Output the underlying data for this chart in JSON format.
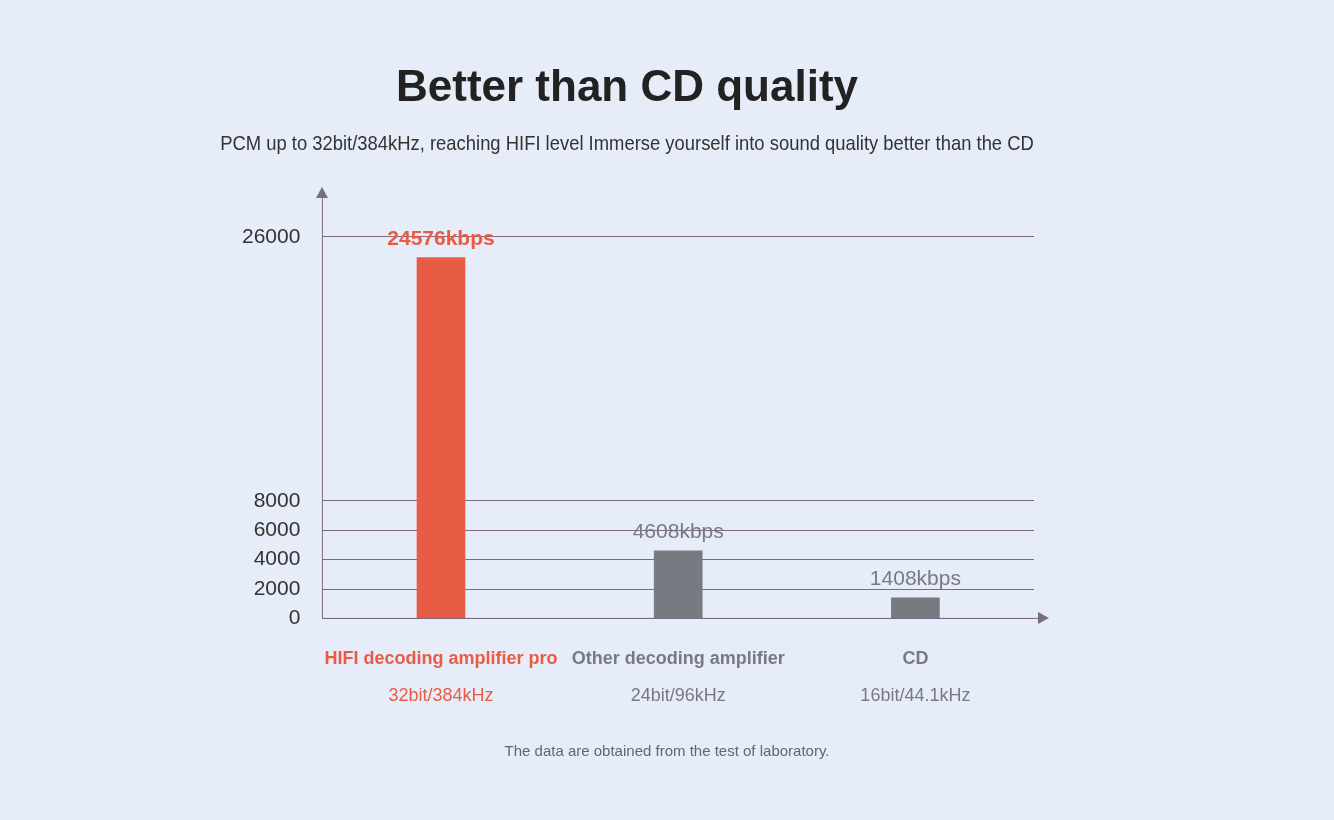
{
  "chart_data": {
    "type": "bar",
    "title": "Better than CD quality",
    "subtitle": "PCM up to 32bit/384kHz, reaching HIFI level Immerse yourself into sound quality better than the CD",
    "categories": [
      "HIFI decoding amplifier pro",
      "Other decoding amplifier",
      "CD"
    ],
    "values": [
      24576,
      4608,
      1408
    ],
    "colors": [
      "#e85c45",
      "#787a82",
      "#787a82"
    ],
    "value_labels": [
      "24576kbps",
      "4608kbps",
      "1408kbps"
    ],
    "ylim": [
      0,
      26000
    ],
    "yticks": [
      0,
      2000,
      4000,
      6000,
      8000,
      26000
    ],
    "grid": "y",
    "annotations": [
      "32bit/384kHz",
      "24bit/96kHz",
      "16bit/44.1kHz",
      "The data are obtained from the test of laboratory."
    ]
  }
}
